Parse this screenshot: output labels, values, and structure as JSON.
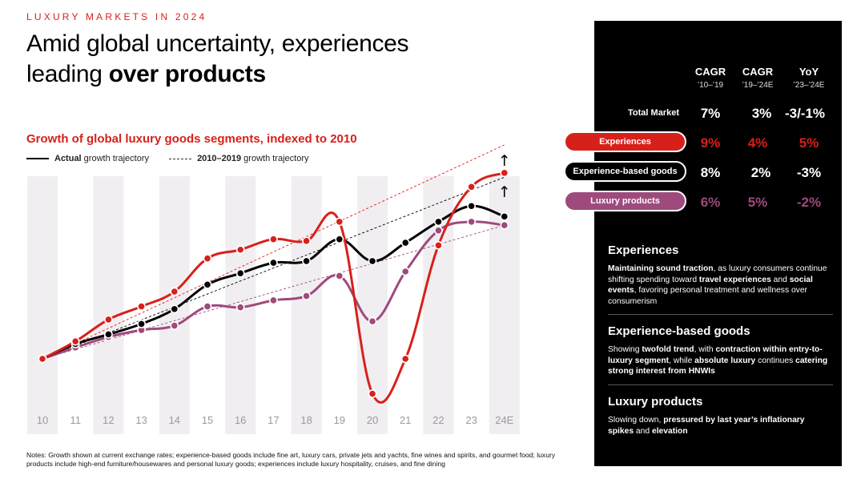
{
  "header": {
    "eyebrow": "LUXURY MARKETS IN 2024",
    "title_line1": "Amid global uncertainty, experiences",
    "title_line2_plain": "leading ",
    "title_line2_bold": "over products"
  },
  "chart_data": {
    "type": "line",
    "title": "Growth of global luxury goods segments, indexed to 2010",
    "legend": {
      "actual_bold": "Actual",
      "actual_rest": " growth trajectory",
      "trend_bold": "2010–2019",
      "trend_rest": " growth trajectory"
    },
    "categories": [
      "10",
      "11",
      "12",
      "13",
      "14",
      "15",
      "16",
      "17",
      "18",
      "19",
      "20",
      "21",
      "22",
      "23",
      "24E"
    ],
    "ylim": [
      0,
      260
    ],
    "series": [
      {
        "name": "Experiences",
        "color": "#d8201b",
        "values": [
          0,
          20,
          45,
          60,
          77,
          115,
          125,
          137,
          135,
          157,
          -40,
          0,
          130,
          197,
          213
        ]
      },
      {
        "name": "Experience-based goods",
        "color": "#000000",
        "values": [
          0,
          17,
          28,
          40,
          57,
          85,
          98,
          110,
          112,
          137,
          112,
          133,
          157,
          175,
          163
        ]
      },
      {
        "name": "Luxury products",
        "color": "#9e4a7c",
        "values": [
          0,
          13,
          25,
          33,
          38,
          60,
          59,
          67,
          72,
          95,
          43,
          100,
          147,
          157,
          153
        ]
      }
    ],
    "trend_lines": [
      {
        "name": "Experiences 2010–2019 trend",
        "color": "#d8201b",
        "from": [
          0,
          0
        ],
        "to": [
          14,
          245
        ]
      },
      {
        "name": "Experience-based goods 2010–2019 trend",
        "color": "#000000",
        "from": [
          0,
          0
        ],
        "to": [
          14,
          208
        ]
      },
      {
        "name": "Luxury products 2010–2019 trend",
        "color": "#9e4a7c",
        "from": [
          0,
          0
        ],
        "to": [
          14,
          153
        ]
      }
    ],
    "arrows": [
      "↑",
      "↑"
    ]
  },
  "panel": {
    "headers": [
      {
        "top": "CAGR",
        "bottom": "’10–’19"
      },
      {
        "top": "CAGR",
        "bottom": "’19–’24E"
      },
      {
        "top": "YoY",
        "bottom": "’23–’24E"
      }
    ],
    "total_market": {
      "label": "Total Market",
      "values": [
        "7%",
        "3%",
        "-3/-1%"
      ]
    },
    "rows": [
      {
        "label": "Experiences",
        "pill_color": "#d8201b",
        "value_color": "#d8201b",
        "values": [
          "9%",
          "4%",
          "5%"
        ]
      },
      {
        "label": "Experience-based goods",
        "pill_color": "#000000",
        "value_color": "#ffffff",
        "values": [
          "8%",
          "2%",
          "-3%"
        ]
      },
      {
        "label": "Luxury products",
        "pill_color": "#9e4a7c",
        "value_color": "#9e4a7c",
        "values": [
          "6%",
          "5%",
          "-2%"
        ]
      }
    ],
    "sections": [
      {
        "heading": "Experiences",
        "parts": [
          {
            "b": true,
            "t": "Maintaining sound traction"
          },
          {
            "b": false,
            "t": ", as luxury consumers continue shifting spending toward "
          },
          {
            "b": true,
            "t": "travel experiences"
          },
          {
            "b": false,
            "t": " and "
          },
          {
            "b": true,
            "t": "social events"
          },
          {
            "b": false,
            "t": ", favoring personal treatment and wellness over consumerism"
          }
        ]
      },
      {
        "heading": "Experience-based goods",
        "parts": [
          {
            "b": false,
            "t": "Showing "
          },
          {
            "b": true,
            "t": "twofold trend"
          },
          {
            "b": false,
            "t": ", with "
          },
          {
            "b": true,
            "t": "contraction within entry-to-luxury segment"
          },
          {
            "b": false,
            "t": ", while "
          },
          {
            "b": true,
            "t": "absolute luxury"
          },
          {
            "b": false,
            "t": " continues "
          },
          {
            "b": true,
            "t": "catering strong interest from HNWIs"
          }
        ]
      },
      {
        "heading": "Luxury products",
        "parts": [
          {
            "b": false,
            "t": "Slowing down, "
          },
          {
            "b": true,
            "t": "pressured by last year’s inflationary spikes"
          },
          {
            "b": false,
            "t": " and "
          },
          {
            "b": true,
            "t": "elevation"
          }
        ]
      }
    ]
  },
  "notes": "Notes: Growth shown at current exchange rates; experience-based goods include fine art, luxury cars, private jets and yachts, fine wines and spirits, and gourmet food; luxury products include high-end furniture/housewares and personal luxury goods; experiences include luxury hospitality, cruises, and fine dining"
}
